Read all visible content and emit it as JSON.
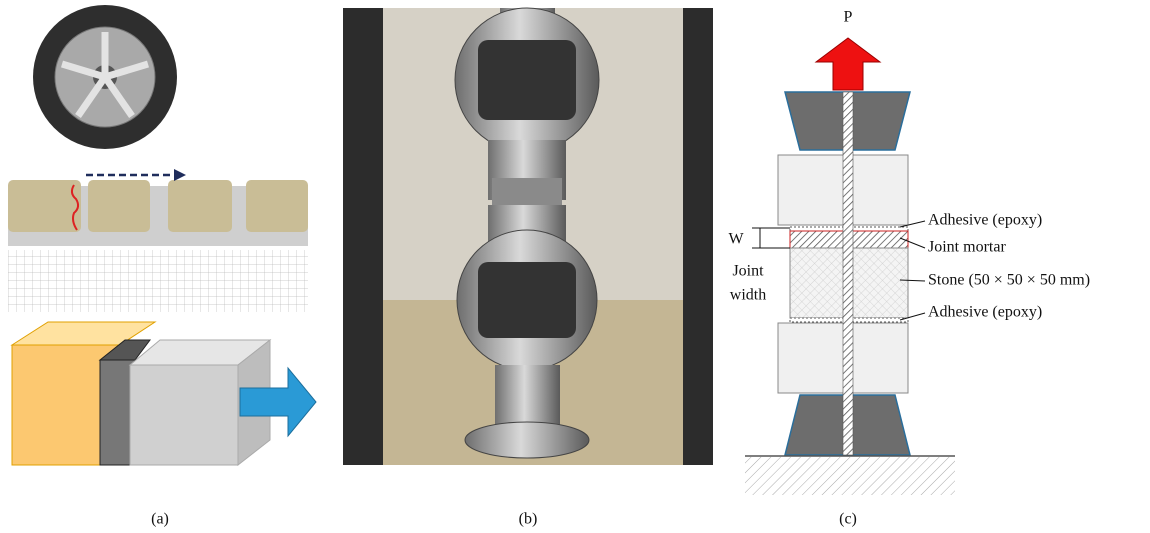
{
  "panel_c": {
    "load_label": "P",
    "labels": [
      "Adhesive (epoxy)",
      "Joint mortar",
      "Stone (50 × 50 × 50 mm)",
      "Adhesive (epoxy)"
    ],
    "w_label": "W",
    "joint_width": [
      "Joint",
      "width"
    ]
  },
  "captions": [
    "(a)",
    "(b)",
    "(c)"
  ]
}
